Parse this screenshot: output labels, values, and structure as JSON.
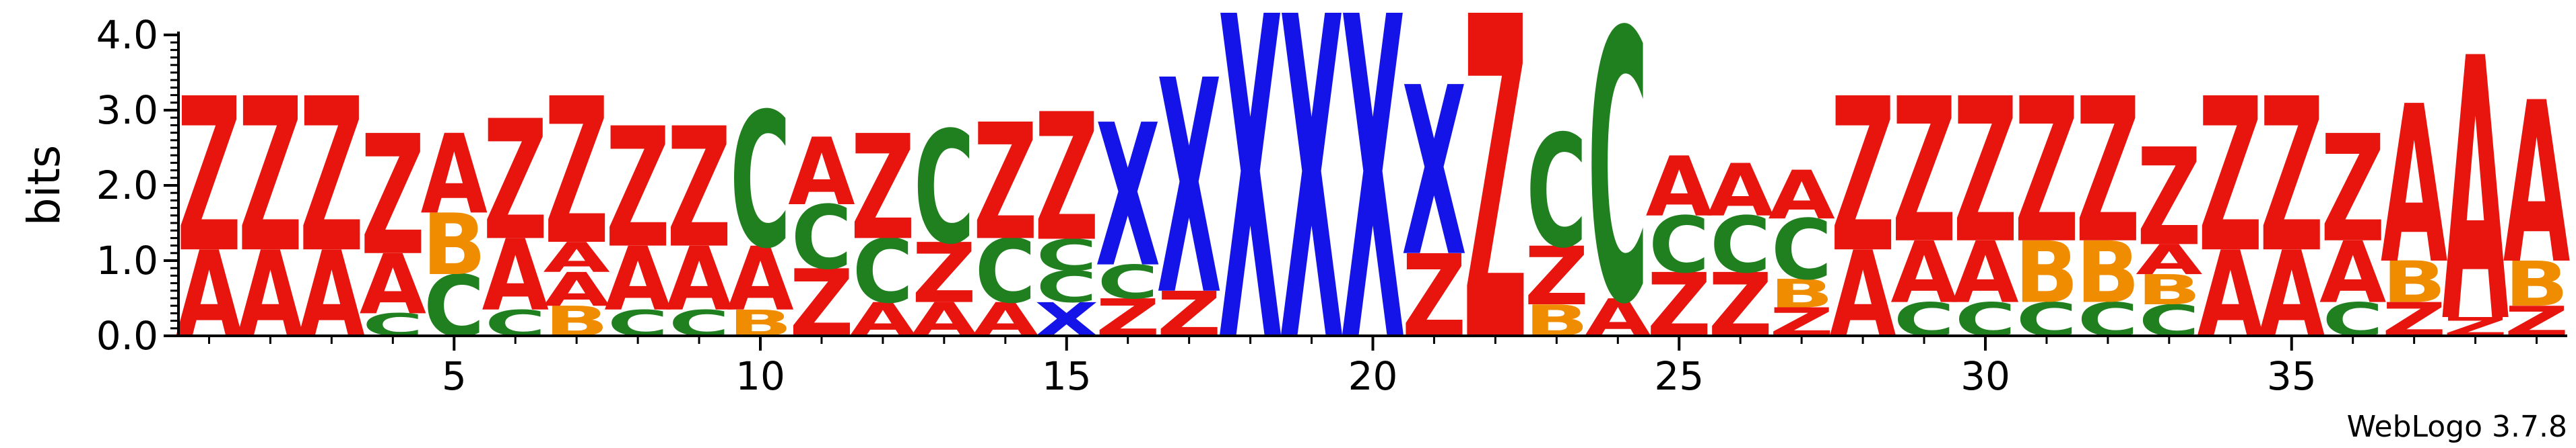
{
  "chart_data": {
    "type": "sequence-logo",
    "title": "",
    "xlabel": "",
    "ylabel": "bits",
    "ylim": [
      0,
      4.0
    ],
    "y_ticks": [
      "0.0",
      "1.0",
      "2.0",
      "3.0",
      "4.0"
    ],
    "x_ticks": [
      5,
      10,
      15,
      20,
      25,
      30,
      35
    ],
    "footer": "WebLogo 3.7.8",
    "colors": {
      "A": "#e8140e",
      "Z": "#e8140e",
      "C": "#208020",
      "B": "#f08c00",
      "X": "#1414e8"
    },
    "positions": [
      {
        "pos": 1,
        "stack": [
          {
            "l": "A",
            "h": 1.15
          },
          {
            "l": "Z",
            "h": 2.05
          }
        ]
      },
      {
        "pos": 2,
        "stack": [
          {
            "l": "A",
            "h": 1.15
          },
          {
            "l": "Z",
            "h": 2.05
          }
        ]
      },
      {
        "pos": 3,
        "stack": [
          {
            "l": "A",
            "h": 1.15
          },
          {
            "l": "Z",
            "h": 2.05
          }
        ]
      },
      {
        "pos": 4,
        "stack": [
          {
            "l": "C",
            "h": 0.3
          },
          {
            "l": "A",
            "h": 0.8
          },
          {
            "l": "Z",
            "h": 1.6
          }
        ]
      },
      {
        "pos": 5,
        "stack": [
          {
            "l": "C",
            "h": 0.82
          },
          {
            "l": "B",
            "h": 0.82
          },
          {
            "l": "A",
            "h": 1.06
          }
        ]
      },
      {
        "pos": 6,
        "stack": [
          {
            "l": "C",
            "h": 0.35
          },
          {
            "l": "A",
            "h": 0.95
          },
          {
            "l": "Z",
            "h": 1.6
          }
        ]
      },
      {
        "pos": 7,
        "stack": [
          {
            "l": "B",
            "h": 0.4
          },
          {
            "l": "A",
            "h": 0.45
          },
          {
            "l": "A",
            "h": 0.4
          },
          {
            "l": "Z",
            "h": 1.95
          }
        ]
      },
      {
        "pos": 8,
        "stack": [
          {
            "l": "C",
            "h": 0.35
          },
          {
            "l": "A",
            "h": 0.85
          },
          {
            "l": "Z",
            "h": 1.6
          }
        ]
      },
      {
        "pos": 9,
        "stack": [
          {
            "l": "C",
            "h": 0.35
          },
          {
            "l": "A",
            "h": 0.85
          },
          {
            "l": "Z",
            "h": 1.6
          }
        ]
      },
      {
        "pos": 10,
        "stack": [
          {
            "l": "B",
            "h": 0.35
          },
          {
            "l": "A",
            "h": 0.85
          },
          {
            "l": "C",
            "h": 1.8
          }
        ]
      },
      {
        "pos": 11,
        "stack": [
          {
            "l": "Z",
            "h": 0.9
          },
          {
            "l": "C",
            "h": 0.85
          },
          {
            "l": "A",
            "h": 0.9
          }
        ]
      },
      {
        "pos": 12,
        "stack": [
          {
            "l": "A",
            "h": 0.45
          },
          {
            "l": "C",
            "h": 0.85
          },
          {
            "l": "Z",
            "h": 1.4
          }
        ]
      },
      {
        "pos": 13,
        "stack": [
          {
            "l": "A",
            "h": 0.45
          },
          {
            "l": "Z",
            "h": 0.8
          },
          {
            "l": "C",
            "h": 1.5
          }
        ]
      },
      {
        "pos": 14,
        "stack": [
          {
            "l": "A",
            "h": 0.45
          },
          {
            "l": "C",
            "h": 0.85
          },
          {
            "l": "Z",
            "h": 1.55
          }
        ]
      },
      {
        "pos": 15,
        "stack": [
          {
            "l": "X",
            "h": 0.45
          },
          {
            "l": "C",
            "h": 0.42
          },
          {
            "l": "C",
            "h": 0.42
          },
          {
            "l": "Z",
            "h": 1.7
          }
        ]
      },
      {
        "pos": 16,
        "stack": [
          {
            "l": "Z",
            "h": 0.5
          },
          {
            "l": "C",
            "h": 0.45
          },
          {
            "l": "X",
            "h": 1.9
          }
        ]
      },
      {
        "pos": 17,
        "stack": [
          {
            "l": "Z",
            "h": 0.6
          },
          {
            "l": "X",
            "h": 2.85
          }
        ]
      },
      {
        "pos": 18,
        "stack": [
          {
            "l": "X",
            "h": 4.3
          }
        ]
      },
      {
        "pos": 19,
        "stack": [
          {
            "l": "X",
            "h": 4.3
          }
        ]
      },
      {
        "pos": 20,
        "stack": [
          {
            "l": "X",
            "h": 4.3
          }
        ]
      },
      {
        "pos": 21,
        "stack": [
          {
            "l": "Z",
            "h": 1.1
          },
          {
            "l": "X",
            "h": 2.25
          }
        ]
      },
      {
        "pos": 22,
        "stack": [
          {
            "l": "Z",
            "h": 4.3
          }
        ]
      },
      {
        "pos": 23,
        "stack": [
          {
            "l": "B",
            "h": 0.42
          },
          {
            "l": "Z",
            "h": 0.78
          },
          {
            "l": "C",
            "h": 1.5
          }
        ]
      },
      {
        "pos": 24,
        "stack": [
          {
            "l": "A",
            "h": 0.5
          },
          {
            "l": "C",
            "h": 3.6
          }
        ]
      },
      {
        "pos": 25,
        "stack": [
          {
            "l": "Z",
            "h": 0.85
          },
          {
            "l": "C",
            "h": 0.75
          },
          {
            "l": "A",
            "h": 0.8
          }
        ]
      },
      {
        "pos": 26,
        "stack": [
          {
            "l": "Z",
            "h": 0.85
          },
          {
            "l": "C",
            "h": 0.75
          },
          {
            "l": "A",
            "h": 0.7
          }
        ]
      },
      {
        "pos": 27,
        "stack": [
          {
            "l": "Z",
            "h": 0.38
          },
          {
            "l": "B",
            "h": 0.38
          },
          {
            "l": "C",
            "h": 0.8
          },
          {
            "l": "A",
            "h": 0.65
          }
        ]
      },
      {
        "pos": 28,
        "stack": [
          {
            "l": "A",
            "h": 1.15
          },
          {
            "l": "Z",
            "h": 2.05
          }
        ]
      },
      {
        "pos": 29,
        "stack": [
          {
            "l": "C",
            "h": 0.45
          },
          {
            "l": "A",
            "h": 0.82
          },
          {
            "l": "Z",
            "h": 1.93
          }
        ]
      },
      {
        "pos": 30,
        "stack": [
          {
            "l": "C",
            "h": 0.45
          },
          {
            "l": "A",
            "h": 0.82
          },
          {
            "l": "Z",
            "h": 1.93
          }
        ]
      },
      {
        "pos": 31,
        "stack": [
          {
            "l": "C",
            "h": 0.45
          },
          {
            "l": "B",
            "h": 0.82
          },
          {
            "l": "Z",
            "h": 1.93
          }
        ]
      },
      {
        "pos": 32,
        "stack": [
          {
            "l": "C",
            "h": 0.45
          },
          {
            "l": "B",
            "h": 0.82
          },
          {
            "l": "Z",
            "h": 1.93
          }
        ]
      },
      {
        "pos": 33,
        "stack": [
          {
            "l": "C",
            "h": 0.42
          },
          {
            "l": "B",
            "h": 0.4
          },
          {
            "l": "A",
            "h": 0.4
          },
          {
            "l": "Z",
            "h": 1.3
          }
        ]
      },
      {
        "pos": 34,
        "stack": [
          {
            "l": "A",
            "h": 1.15
          },
          {
            "l": "Z",
            "h": 2.05
          }
        ]
      },
      {
        "pos": 35,
        "stack": [
          {
            "l": "A",
            "h": 1.15
          },
          {
            "l": "Z",
            "h": 2.05
          }
        ]
      },
      {
        "pos": 36,
        "stack": [
          {
            "l": "C",
            "h": 0.45
          },
          {
            "l": "A",
            "h": 0.82
          },
          {
            "l": "Z",
            "h": 1.43
          }
        ]
      },
      {
        "pos": 37,
        "stack": [
          {
            "l": "Z",
            "h": 0.45
          },
          {
            "l": "B",
            "h": 0.55
          },
          {
            "l": "A",
            "h": 2.1
          }
        ]
      },
      {
        "pos": 38,
        "stack": [
          {
            "l": "Z",
            "h": 0.25
          },
          {
            "l": "A",
            "h": 3.5
          }
        ]
      },
      {
        "pos": 39,
        "stack": [
          {
            "l": "Z",
            "h": 0.4
          },
          {
            "l": "B",
            "h": 0.6
          },
          {
            "l": "A",
            "h": 2.15
          }
        ]
      }
    ]
  }
}
